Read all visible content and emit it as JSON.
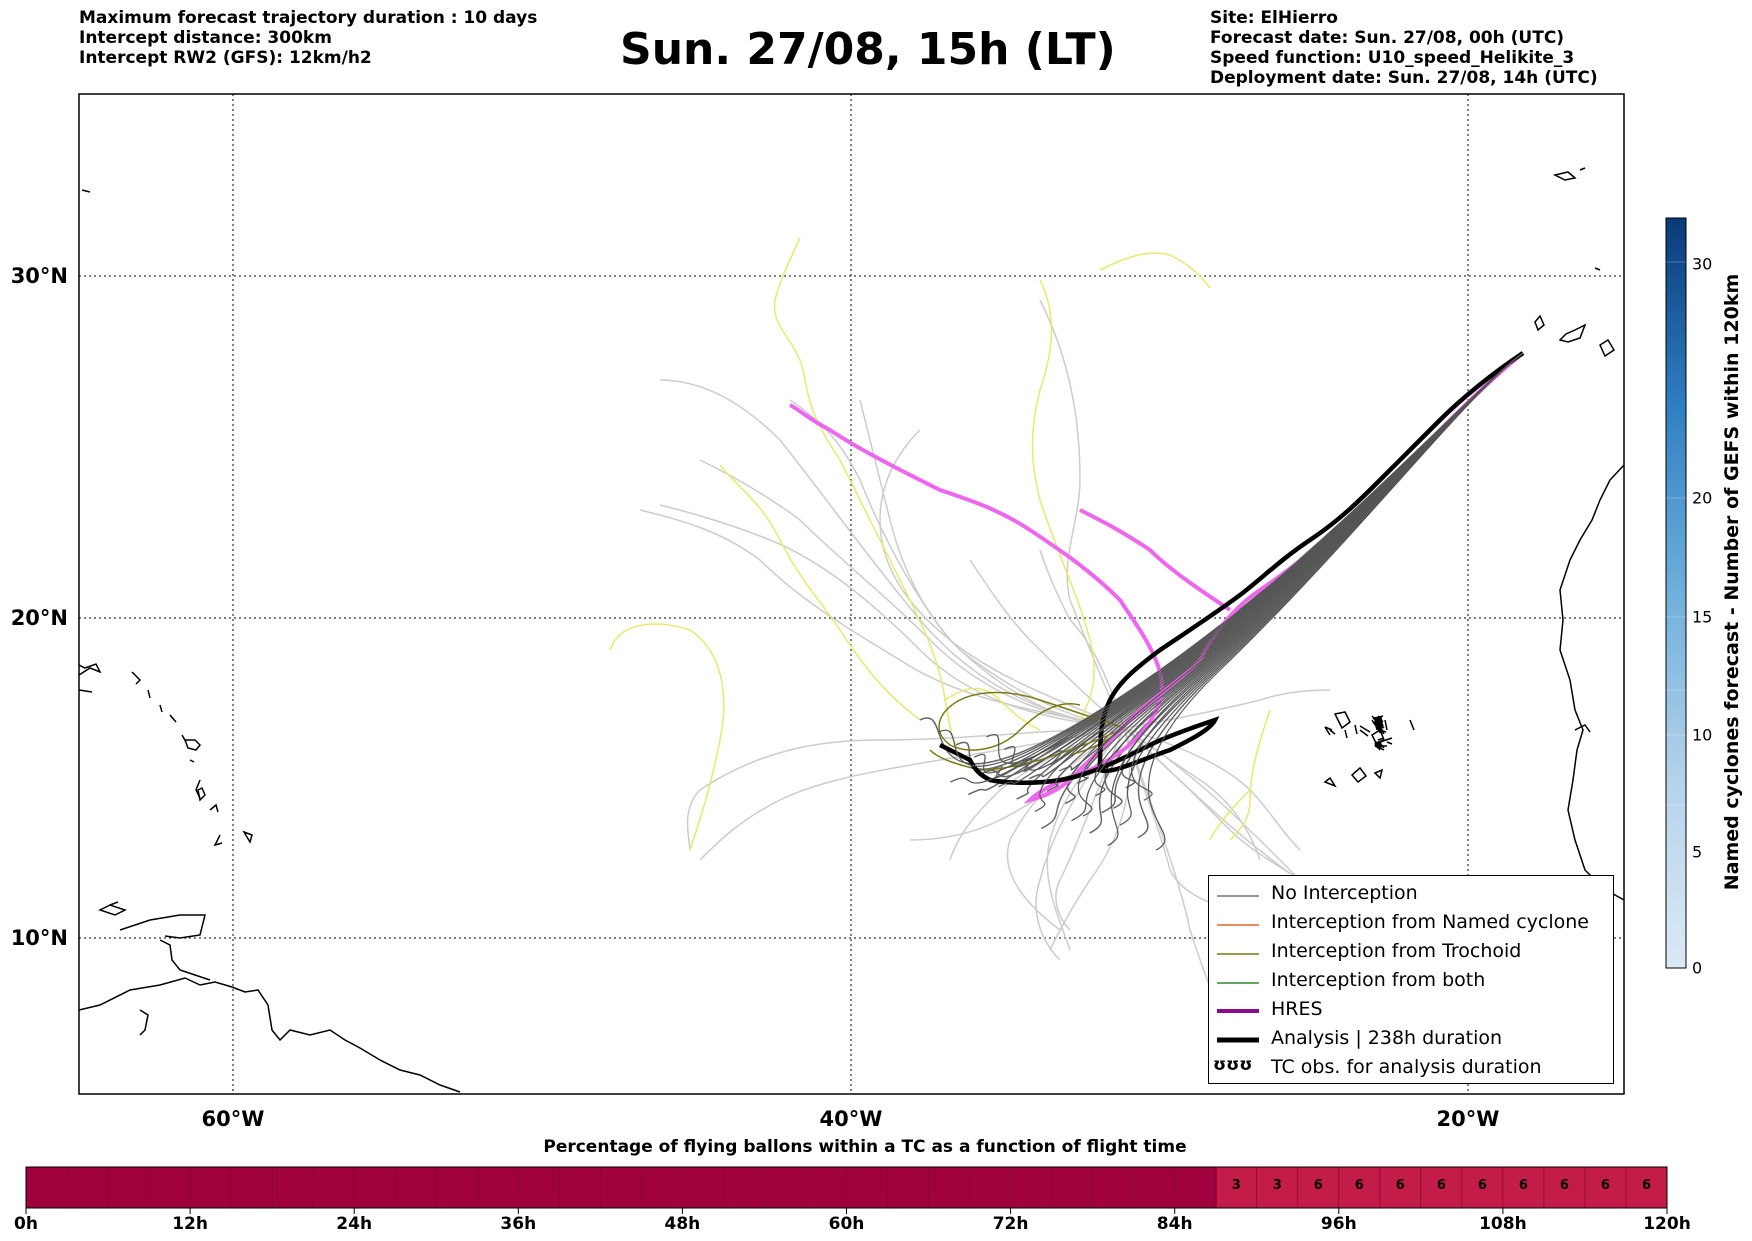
{
  "header": {
    "info_left": [
      "Maximum forecast trajectory duration : 10 days",
      "Intercept distance: 300km",
      "Intercept RW2 (GFS):  12km/h2"
    ],
    "title": "Sun. 27/08, 15h (LT)",
    "info_right": [
      "Site: ElHierro",
      "Forecast date: Sun. 27/08, 00h (UTC)",
      "Speed function: U10_speed_Helikite_3",
      "Deployment date: Sun. 27/08, 14h (UTC)"
    ]
  },
  "map": {
    "lat_labels": [
      "30°N",
      "20°N",
      "10°N"
    ],
    "lon_labels": [
      "60°W",
      "40°W",
      "20°W"
    ]
  },
  "legend": {
    "items": [
      {
        "label": "No Interception",
        "color": "#777777",
        "width": 1.5
      },
      {
        "label": "Interception from Named cyclone",
        "color": "#e8602a",
        "width": 1.5
      },
      {
        "label": "Interception from Trochoid",
        "color": "#7a7a10",
        "width": 1.5
      },
      {
        "label": "Interception from both",
        "color": "#2e8b2e",
        "width": 1.5
      },
      {
        "label": "HRES",
        "color": "#8b0a8b",
        "width": 4
      },
      {
        "label": "Analysis | 238h duration",
        "color": "#000000",
        "width": 5
      },
      {
        "label": "TC obs. for analysis duration",
        "symbol": "ʊʊʊ"
      }
    ]
  },
  "colorbar": {
    "title": "Named cyclones forecast - Number of GEFS within 120km",
    "ticks": [
      "0",
      "5",
      "10",
      "15",
      "20",
      "30"
    ]
  },
  "bottom_bar": {
    "title": "Percentage of flying ballons within a TC as a function of flight time",
    "time_ticks": [
      "0h",
      "12h",
      "24h",
      "36h",
      "48h",
      "60h",
      "72h",
      "84h",
      "96h",
      "108h",
      "120h"
    ],
    "cell_labels": [
      "3",
      "3",
      "6",
      "6",
      "6",
      "6",
      "6",
      "6",
      "6",
      "6",
      "6"
    ]
  },
  "colors": {
    "bar_dark": "#a0003c",
    "bar_light": "#c41c49",
    "hres_trajectory": "#ee66ee",
    "trochoid_trajectory": "#e8e870",
    "gefs_trajectory": "#cccccc",
    "analysis": "#000000"
  }
}
